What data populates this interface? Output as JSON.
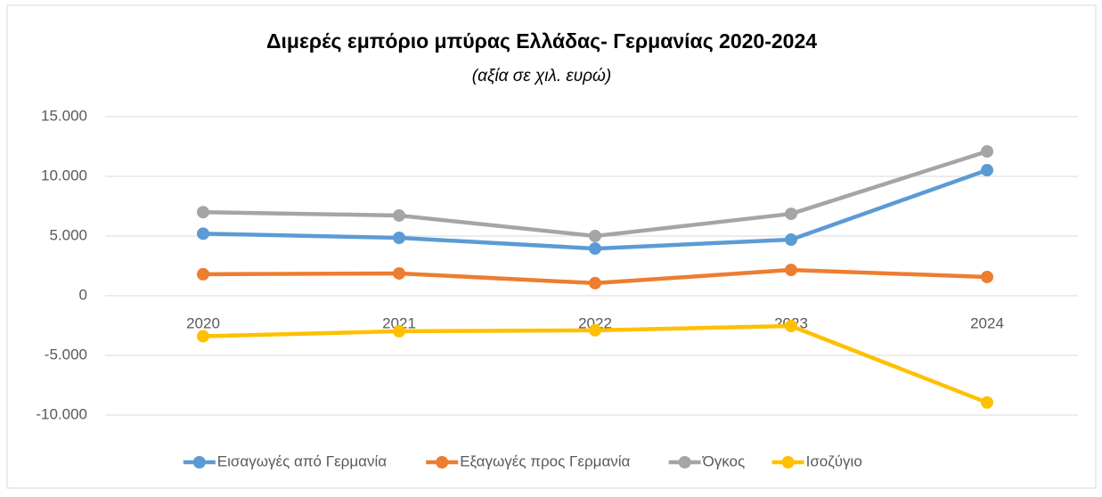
{
  "chart_data": {
    "type": "line",
    "title": "Διμερές εμπόριο μπύρας Ελλάδας- Γερμανίας 2020-2024",
    "subtitle": "(αξία σε χιλ. ευρώ)",
    "categories": [
      "2020",
      "2021",
      "2022",
      "2023",
      "2024"
    ],
    "series": [
      {
        "name": "Εισαγωγές από Γερμανία",
        "color": "#5b9bd5",
        "values": [
          5200,
          4850,
          3950,
          4700,
          10520
        ]
      },
      {
        "name": "Εξαγωγές προς Γερμανία",
        "color": "#ed7d31",
        "values": [
          1800,
          1870,
          1050,
          2160,
          1570
        ]
      },
      {
        "name": "Όγκος",
        "color": "#a5a5a5",
        "values": [
          7000,
          6720,
          5000,
          6860,
          12090
        ]
      },
      {
        "name": "Ισοζύγιο",
        "color": "#ffc000",
        "values": [
          -3400,
          -2980,
          -2900,
          -2540,
          -8950
        ]
      }
    ],
    "ylim": [
      -10000,
      15000
    ],
    "yticks": [
      {
        "value": -10000,
        "label": "-10.000"
      },
      {
        "value": -5000,
        "label": "-5.000"
      },
      0,
      {
        "value": 5000,
        "label": "5.000"
      },
      {
        "value": 10000,
        "label": "10.000"
      },
      {
        "value": 15000,
        "label": "15.000"
      }
    ],
    "grid": true,
    "legend": "bottom"
  }
}
